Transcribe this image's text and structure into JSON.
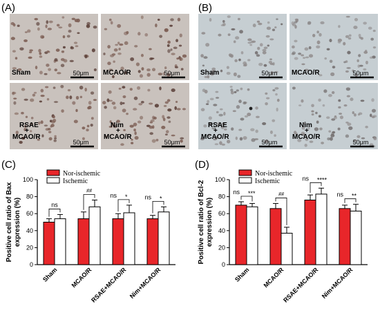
{
  "panels": {
    "A": {
      "letter": "(A)",
      "tiles": [
        {
          "label": "Sham",
          "label2": "",
          "scale": "50μm"
        },
        {
          "label": "MCAO/R",
          "label2": "",
          "scale": "50μm"
        },
        {
          "label": "RSAE",
          "plus": "+",
          "label2": "MCAO/R",
          "scale": "50μm"
        },
        {
          "label": "Nim",
          "plus": "+",
          "label2": "MCAO/R",
          "scale": "50μm"
        }
      ],
      "colors": {
        "bg": "#c9c2bd",
        "cell": "#7d5f55",
        "cell_dark": "#5a3f38",
        "accent": "#a84a3a"
      }
    },
    "B": {
      "letter": "(B)",
      "tiles": [
        {
          "label": "Sham",
          "label2": "",
          "scale": "50μm"
        },
        {
          "label": "MCAO/R",
          "label2": "",
          "scale": "50μm"
        },
        {
          "label": "RSAE",
          "plus": "+",
          "label2": "MCAO/R",
          "scale": "50μm"
        },
        {
          "label": "Nim",
          "plus": "+",
          "label2": "MCAO/R",
          "scale": "50μm"
        }
      ],
      "colors": {
        "bg": "#c6ced2",
        "cell": "#8f8a8a",
        "cell_dark": "#6e6868",
        "accent": "#222222"
      }
    },
    "C": {
      "letter": "(C)"
    },
    "D": {
      "letter": "(D)"
    }
  },
  "chart_data": [
    {
      "type": "bar",
      "panel": "C",
      "ylabel": [
        "Positive cell ratio of Bax",
        "expression (%)"
      ],
      "categories": [
        "Sham",
        "MCAO/R",
        "RSAE+MCAO/R",
        "Nim+MCAO/R"
      ],
      "series": [
        {
          "name": "Nor-ischemic",
          "color": "#e8262a",
          "values": [
            50,
            54,
            54,
            54
          ],
          "errors": [
            4,
            8,
            6,
            4
          ]
        },
        {
          "name": "Ischemic",
          "color": "#ffffff",
          "values": [
            54,
            68,
            61,
            62
          ],
          "errors": [
            5,
            8,
            9,
            6
          ]
        }
      ],
      "ylim": [
        0,
        100
      ],
      "yticks": [
        0,
        20,
        40,
        60,
        80,
        100
      ],
      "annotations": [
        {
          "category": 0,
          "ns": "ns",
          "star": ""
        },
        {
          "category": 1,
          "ns": "",
          "hash": "##",
          "star": ""
        },
        {
          "category": 2,
          "ns": "ns",
          "star": "*"
        },
        {
          "category": 3,
          "ns": "ns",
          "star": "*"
        }
      ],
      "legend": "top-left"
    },
    {
      "type": "bar",
      "panel": "D",
      "ylabel": [
        "Positive cell ratio of Bcl-2",
        "expression (%)"
      ],
      "categories": [
        "Sham",
        "MCAO/R",
        "RSAE+MCAO/R",
        "Nim+MCAO/R"
      ],
      "series": [
        {
          "name": "Nor-ischemic",
          "color": "#e8262a",
          "values": [
            70,
            66,
            76,
            66
          ],
          "errors": [
            4,
            6,
            6,
            4
          ]
        },
        {
          "name": "Ischemic",
          "color": "#ffffff",
          "values": [
            68,
            37,
            83,
            63
          ],
          "errors": [
            4,
            7,
            7,
            8
          ]
        }
      ],
      "ylim": [
        0,
        100
      ],
      "yticks": [
        0,
        20,
        40,
        60,
        80,
        100
      ],
      "annotations": [
        {
          "category": 0,
          "ns": "ns",
          "star": "***"
        },
        {
          "category": 1,
          "ns": "",
          "hash": "##",
          "star": ""
        },
        {
          "category": 2,
          "ns": "ns",
          "star": "****"
        },
        {
          "category": 3,
          "ns": "ns",
          "star": "**"
        }
      ],
      "legend": "top-left"
    }
  ]
}
